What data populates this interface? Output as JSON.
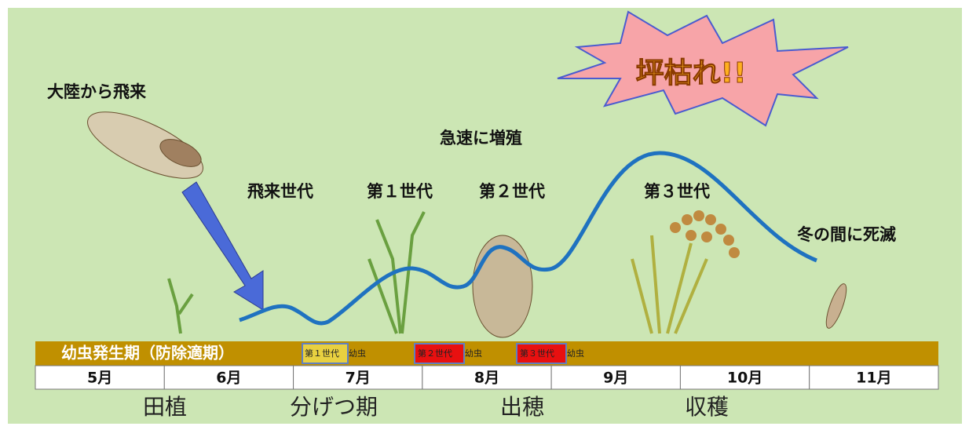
{
  "burst": "坪枯れ!!",
  "annotations": {
    "arrival": "大陸から飛来",
    "increase": "急速に増殖",
    "die_off": "冬の間に死滅"
  },
  "generations": [
    "飛来世代",
    "第１世代",
    "第２世代",
    "第３世代"
  ],
  "larval_period": {
    "label": "幼虫発生期（防除適期）",
    "tags": [
      {
        "generation": "第１世代",
        "stage": "幼虫"
      },
      {
        "generation": "第２世代",
        "stage": "幼虫"
      },
      {
        "generation": "第３世代",
        "stage": "幼虫"
      }
    ]
  },
  "months": [
    "5月",
    "6月",
    "7月",
    "8月",
    "9月",
    "10月",
    "11月"
  ],
  "stages": [
    "田植",
    "分げつ期",
    "出穂",
    "収穫"
  ]
}
